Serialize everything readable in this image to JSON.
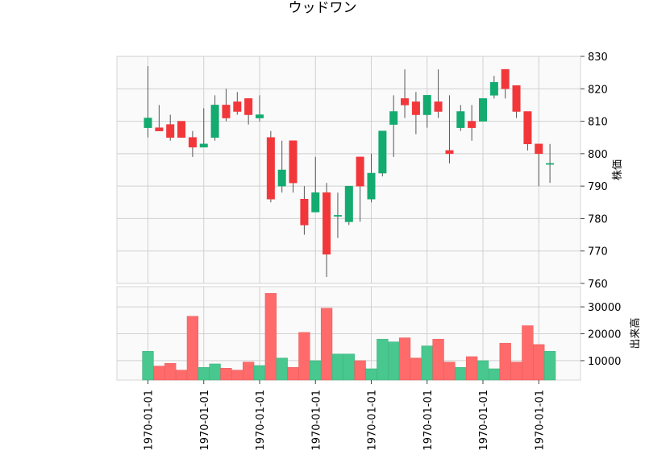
{
  "chart_data": {
    "type": "candlestick",
    "title": "ウッドワン",
    "price_panel": {
      "ylabel": "株価",
      "ylim": [
        760,
        830
      ],
      "yticks": [
        760,
        770,
        780,
        790,
        800,
        810,
        820,
        830
      ],
      "grid": true
    },
    "volume_panel": {
      "ylabel": "出来高",
      "yticks": [
        10000,
        20000,
        30000
      ],
      "grid": true
    },
    "x_tick_labels": [
      "1970-01-01",
      "1970-01-01",
      "1970-01-01",
      "1970-01-01",
      "1970-01-01",
      "1970-01-01",
      "1970-01-01",
      "1970-01-01"
    ],
    "x_tick_positions": [
      0,
      5,
      10,
      15,
      20,
      25,
      30,
      35
    ],
    "colors": {
      "up": "#13ab6f",
      "down": "#f2373b",
      "up_volume": "#48c78e",
      "down_volume": "#ff6b6b"
    },
    "candles": [
      {
        "o": 808,
        "h": 827,
        "l": 805,
        "c": 811,
        "v": 13500
      },
      {
        "o": 808,
        "h": 815,
        "l": 807,
        "c": 807,
        "v": 8000
      },
      {
        "o": 809,
        "h": 812,
        "l": 804,
        "c": 805,
        "v": 9000
      },
      {
        "o": 810,
        "h": 810,
        "l": 805,
        "c": 805,
        "v": 6500
      },
      {
        "o": 805,
        "h": 807,
        "l": 799,
        "c": 802,
        "v": 26500
      },
      {
        "o": 802,
        "h": 814,
        "l": 802,
        "c": 803,
        "v": 7500
      },
      {
        "o": 805,
        "h": 818,
        "l": 804,
        "c": 815,
        "v": 8800
      },
      {
        "o": 815,
        "h": 820,
        "l": 810,
        "c": 811,
        "v": 7200
      },
      {
        "o": 816,
        "h": 819,
        "l": 812,
        "c": 813,
        "v": 6500
      },
      {
        "o": 817,
        "h": 817,
        "l": 809,
        "c": 812,
        "v": 9500
      },
      {
        "o": 811,
        "h": 818,
        "l": 810,
        "c": 812,
        "v": 8200
      },
      {
        "o": 805,
        "h": 807,
        "l": 785,
        "c": 786,
        "v": 35000
      },
      {
        "o": 790,
        "h": 804,
        "l": 788,
        "c": 795,
        "v": 11000
      },
      {
        "o": 804,
        "h": 804,
        "l": 788,
        "c": 791,
        "v": 7500
      },
      {
        "o": 786,
        "h": 790,
        "l": 775,
        "c": 778,
        "v": 20500
      },
      {
        "o": 782,
        "h": 799,
        "l": 782,
        "c": 788,
        "v": 10000
      },
      {
        "o": 788,
        "h": 791,
        "l": 762,
        "c": 769,
        "v": 29500
      },
      {
        "o": 781,
        "h": 788,
        "l": 774,
        "c": 781,
        "v": 12500
      },
      {
        "o": 779,
        "h": 790,
        "l": 778,
        "c": 790,
        "v": 12500
      },
      {
        "o": 799,
        "h": 799,
        "l": 779,
        "c": 790,
        "v": 10000
      },
      {
        "o": 786,
        "h": 800,
        "l": 785,
        "c": 794,
        "v": 7000
      },
      {
        "o": 794,
        "h": 807,
        "l": 793,
        "c": 807,
        "v": 18000
      },
      {
        "o": 809,
        "h": 818,
        "l": 799,
        "c": 813,
        "v": 17000
      },
      {
        "o": 817,
        "h": 826,
        "l": 811,
        "c": 815,
        "v": 18500
      },
      {
        "o": 816,
        "h": 819,
        "l": 806,
        "c": 812,
        "v": 11000
      },
      {
        "o": 812,
        "h": 818,
        "l": 808,
        "c": 818,
        "v": 15500
      },
      {
        "o": 816,
        "h": 826,
        "l": 811,
        "c": 813,
        "v": 18000
      },
      {
        "o": 801,
        "h": 818,
        "l": 797,
        "c": 800,
        "v": 9500
      },
      {
        "o": 808,
        "h": 815,
        "l": 807,
        "c": 813,
        "v": 7500
      },
      {
        "o": 810,
        "h": 815,
        "l": 804,
        "c": 808,
        "v": 11500
      },
      {
        "o": 810,
        "h": 817,
        "l": 810,
        "c": 817,
        "v": 10000
      },
      {
        "o": 818,
        "h": 824,
        "l": 817,
        "c": 822,
        "v": 7000
      },
      {
        "o": 826,
        "h": 826,
        "l": 817,
        "c": 820,
        "v": 16500
      },
      {
        "o": 821,
        "h": 821,
        "l": 811,
        "c": 813,
        "v": 9500
      },
      {
        "o": 813,
        "h": 813,
        "l": 801,
        "c": 803,
        "v": 23000
      },
      {
        "o": 803,
        "h": 803,
        "l": 790,
        "c": 800,
        "v": 16000
      },
      {
        "o": 797,
        "h": 803,
        "l": 791,
        "c": 797,
        "v": 13500
      }
    ]
  }
}
